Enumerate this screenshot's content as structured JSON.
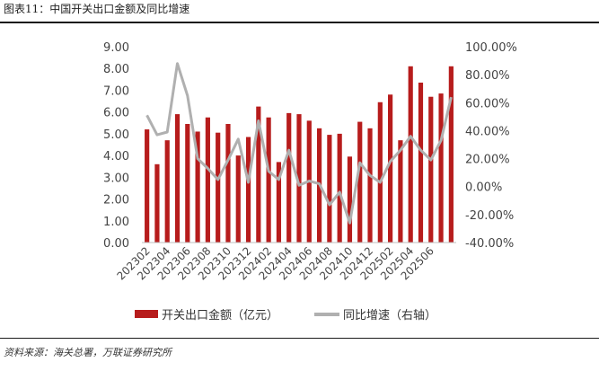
{
  "title": "图表11：中国开关出口金额及同比增速",
  "source": "资料来源：海关总署，万联证券研究所",
  "colors": {
    "bar": "#b71c1c",
    "line": "#b0b0b0"
  },
  "legend": {
    "bar_label": "开关出口金额（亿元）",
    "line_label": "同比增速（右轴）"
  },
  "chart_data": {
    "type": "bar",
    "categories": [
      "202302",
      "202303",
      "202304",
      "202305",
      "202306",
      "202307",
      "202308",
      "202309",
      "202310",
      "202311",
      "202312",
      "202401",
      "202402",
      "202403",
      "202404",
      "202405",
      "202406",
      "202407",
      "202408",
      "202409",
      "202410",
      "202411",
      "202412",
      "202501",
      "202502",
      "202503",
      "202504",
      "202505",
      "202506",
      "202507",
      "202508"
    ],
    "x_tick_labels": [
      "202302",
      "202304",
      "202306",
      "202308",
      "202310",
      "202312",
      "202402",
      "202404",
      "202406",
      "202408",
      "202410",
      "202412",
      "202502",
      "202504",
      "202506"
    ],
    "series": [
      {
        "name": "开关出口金额（亿元）",
        "axis": "left",
        "kind": "bar",
        "values": [
          5.2,
          3.6,
          4.7,
          5.9,
          5.45,
          5.1,
          5.75,
          5.05,
          5.45,
          4.0,
          4.85,
          6.25,
          5.75,
          3.7,
          5.95,
          5.9,
          5.6,
          5.25,
          4.95,
          5.0,
          3.95,
          5.55,
          5.25,
          6.45,
          6.8,
          4.7,
          8.1,
          7.35,
          6.7,
          6.85,
          8.1
        ]
      },
      {
        "name": "同比增速（右轴）",
        "axis": "right",
        "kind": "line",
        "values": [
          0.51,
          0.37,
          0.39,
          0.88,
          0.65,
          0.2,
          0.13,
          0.05,
          0.19,
          0.34,
          0.03,
          0.47,
          0.11,
          0.05,
          0.26,
          0.01,
          0.04,
          0.02,
          -0.13,
          -0.04,
          -0.26,
          0.17,
          0.08,
          0.03,
          0.18,
          0.26,
          0.36,
          0.26,
          0.19,
          0.33,
          0.64
        ]
      }
    ],
    "left_axis": {
      "ylim": [
        0,
        9
      ],
      "ticks": [
        "9.00",
        "8.00",
        "7.00",
        "6.00",
        "5.00",
        "4.00",
        "3.00",
        "2.00",
        "1.00",
        "0.00"
      ]
    },
    "right_axis": {
      "ylim": [
        -0.4,
        1.0
      ],
      "ticks": [
        "100.00%",
        "80.00%",
        "60.00%",
        "40.00%",
        "20.00%",
        "0.00%",
        "-20.00%",
        "-40.00%"
      ]
    },
    "grid": false,
    "legend_position": "bottom"
  }
}
